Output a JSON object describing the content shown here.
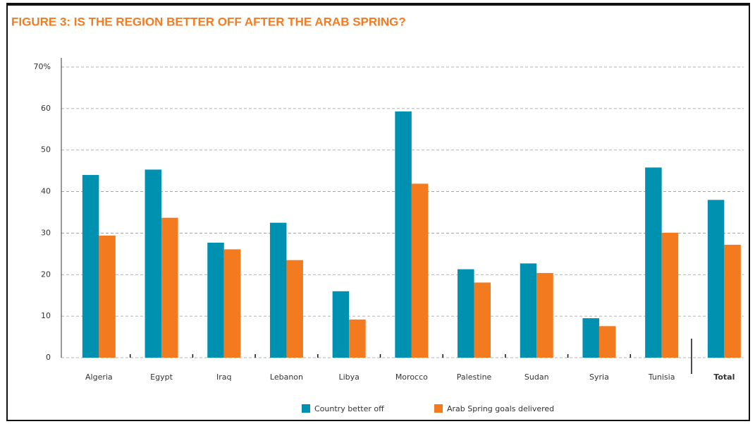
{
  "chart_data": {
    "type": "bar",
    "title": "FIGURE 3: IS THE REGION BETTER OFF AFTER THE ARAB SPRING?",
    "categories": [
      "Algeria",
      "Egypt",
      "Iraq",
      "Lebanon",
      "Libya",
      "Morocco",
      "Palestine",
      "Sudan",
      "Syria",
      "Tunisia",
      "Total"
    ],
    "series": [
      {
        "name": "Country better off",
        "color": "#0090b0",
        "values": [
          44,
          45.3,
          27.7,
          32.5,
          16,
          59.3,
          21.3,
          22.7,
          9.5,
          45.8,
          38
        ]
      },
      {
        "name": "Arab Spring goals delivered",
        "color": "#f47a20",
        "values": [
          29.4,
          33.7,
          26.1,
          23.5,
          9.2,
          41.9,
          18.1,
          20.4,
          7.6,
          30.1,
          27.2
        ]
      }
    ],
    "ylim": [
      0,
      70
    ],
    "yticks": [
      0,
      10,
      20,
      30,
      40,
      50,
      60,
      {
        "value": 70,
        "label": "70%"
      }
    ],
    "grid": true,
    "legend": "bottom"
  }
}
